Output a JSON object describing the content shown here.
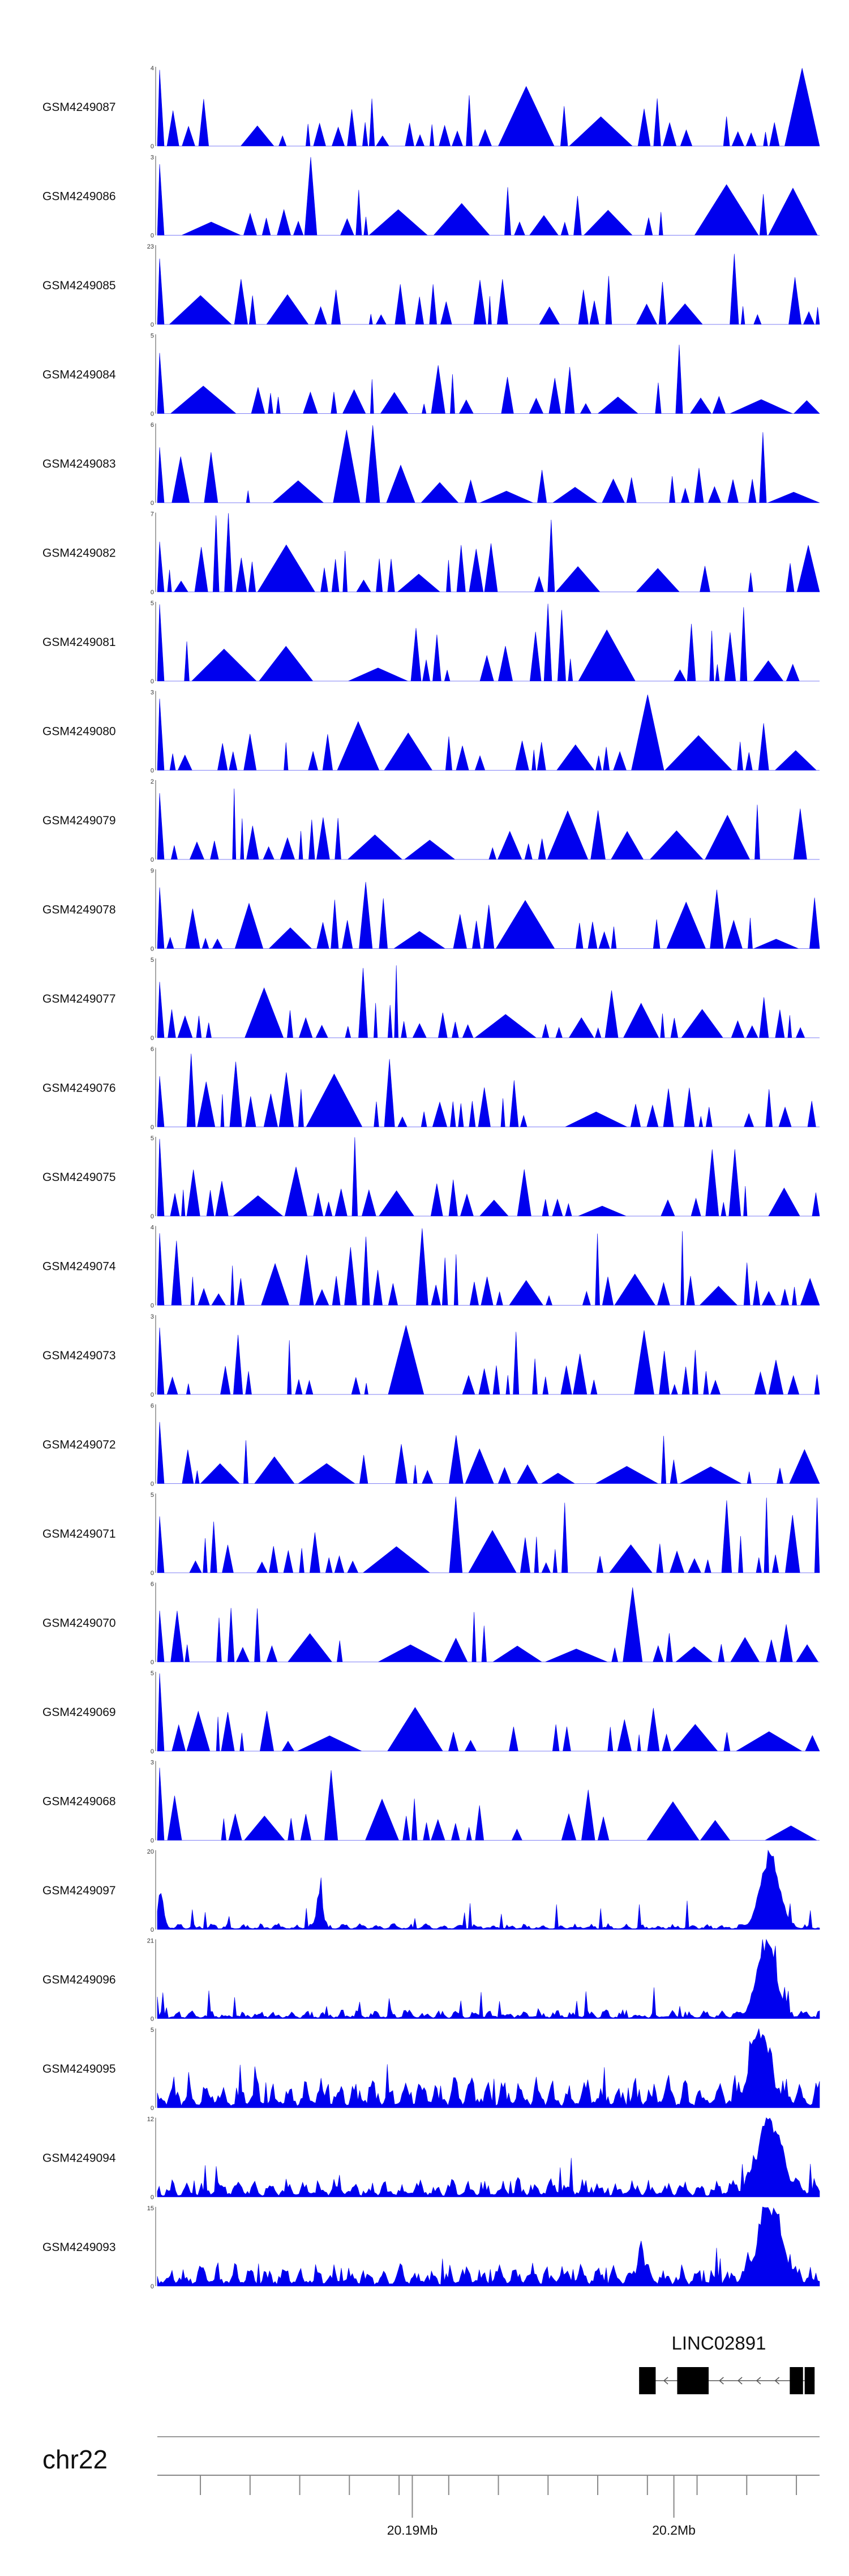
{
  "chart_data": {
    "type": "area",
    "color": "#0000ee",
    "axis_color": "#888888",
    "tracks": [
      {
        "label": "GSM4249087",
        "ymax": "4",
        "ymin": "0",
        "kind": "spike",
        "max": 4,
        "seed": 11,
        "peaks": []
      },
      {
        "label": "GSM4249086",
        "ymax": "3",
        "ymin": "0",
        "kind": "spike",
        "max": 3,
        "seed": 12,
        "peaks": []
      },
      {
        "label": "GSM4249085",
        "ymax": "23",
        "ymin": "0",
        "kind": "spike",
        "max": 23,
        "seed": 13,
        "peaks": []
      },
      {
        "label": "GSM4249084",
        "ymax": "5",
        "ymin": "0",
        "kind": "spike",
        "max": 5,
        "seed": 14,
        "peaks": []
      },
      {
        "label": "GSM4249083",
        "ymax": "6",
        "ymin": "0",
        "kind": "spike",
        "max": 6,
        "seed": 15,
        "peaks": []
      },
      {
        "label": "GSM4249082",
        "ymax": "7",
        "ymin": "0",
        "kind": "spike",
        "max": 7,
        "seed": 16,
        "peaks": []
      },
      {
        "label": "GSM4249081",
        "ymax": "5",
        "ymin": "0",
        "kind": "spike",
        "max": 5,
        "seed": 17,
        "peaks": []
      },
      {
        "label": "GSM4249080",
        "ymax": "3",
        "ymin": "0",
        "kind": "spike",
        "max": 3,
        "seed": 18,
        "peaks": []
      },
      {
        "label": "GSM4249079",
        "ymax": "2",
        "ymin": "0",
        "kind": "spike",
        "max": 2,
        "seed": 19,
        "peaks": []
      },
      {
        "label": "GSM4249078",
        "ymax": "9",
        "ymin": "0",
        "kind": "spike",
        "max": 9,
        "seed": 20,
        "peaks": []
      },
      {
        "label": "GSM4249077",
        "ymax": "5",
        "ymin": "0",
        "kind": "spike",
        "max": 5,
        "seed": 21,
        "peaks": []
      },
      {
        "label": "GSM4249076",
        "ymax": "6",
        "ymin": "0",
        "kind": "spike",
        "max": 6,
        "seed": 22,
        "peaks": []
      },
      {
        "label": "GSM4249075",
        "ymax": "5",
        "ymin": "0",
        "kind": "spike",
        "max": 5,
        "seed": 23,
        "peaks": []
      },
      {
        "label": "GSM4249074",
        "ymax": "4",
        "ymin": "0",
        "kind": "spike",
        "max": 4,
        "seed": 24,
        "peaks": []
      },
      {
        "label": "GSM4249073",
        "ymax": "3",
        "ymin": "0",
        "kind": "spike",
        "max": 3,
        "seed": 25,
        "peaks": []
      },
      {
        "label": "GSM4249072",
        "ymax": "6",
        "ymin": "0",
        "kind": "spike",
        "max": 6,
        "seed": 26,
        "peaks": []
      },
      {
        "label": "GSM4249071",
        "ymax": "5",
        "ymin": "0",
        "kind": "spike",
        "max": 5,
        "seed": 27,
        "peaks": []
      },
      {
        "label": "GSM4249070",
        "ymax": "6",
        "ymin": "0",
        "kind": "spike",
        "max": 6,
        "seed": 28,
        "peaks": []
      },
      {
        "label": "GSM4249069",
        "ymax": "5",
        "ymin": "0",
        "kind": "spike",
        "max": 5,
        "seed": 29,
        "peaks": []
      },
      {
        "label": "GSM4249068",
        "ymax": "3",
        "ymin": "0",
        "kind": "spike",
        "max": 3,
        "seed": 30,
        "peaks": []
      },
      {
        "label": "GSM4249097",
        "ymax": "20",
        "ymin": "0",
        "kind": "dense",
        "max": 20,
        "seed": 31,
        "base": 0.08,
        "peaks": [
          {
            "pos": 0.005,
            "h": 0.45,
            "w": 0.006
          },
          {
            "pos": 0.245,
            "h": 0.5,
            "w": 0.006
          },
          {
            "pos": 0.925,
            "h": 0.95,
            "w": 0.02
          }
        ]
      },
      {
        "label": "GSM4249096",
        "ymax": "21",
        "ymin": "0",
        "kind": "dense",
        "max": 21,
        "seed": 32,
        "base": 0.12,
        "peaks": [
          {
            "pos": 0.92,
            "h": 0.98,
            "w": 0.02
          }
        ]
      },
      {
        "label": "GSM4249095",
        "ymax": "5",
        "ymin": "0",
        "kind": "dense",
        "max": 5,
        "seed": 33,
        "base": 0.4,
        "peaks": [
          {
            "pos": 0.91,
            "h": 0.95,
            "w": 0.02
          }
        ]
      },
      {
        "label": "GSM4249094",
        "ymax": "12",
        "ymin": "0",
        "kind": "dense",
        "max": 12,
        "seed": 34,
        "base": 0.25,
        "peaks": [
          {
            "pos": 0.925,
            "h": 0.95,
            "w": 0.025
          }
        ]
      },
      {
        "label": "GSM4249093",
        "ymax": "15",
        "ymin": "0",
        "kind": "dense",
        "max": 15,
        "seed": 35,
        "base": 0.3,
        "peaks": [
          {
            "pos": 0.73,
            "h": 0.55,
            "w": 0.006
          },
          {
            "pos": 0.925,
            "h": 0.95,
            "w": 0.025
          }
        ]
      }
    ],
    "gene": {
      "name": "LINC02891",
      "strand": "-",
      "exons": [
        [
          0.7275,
          0.7525
        ],
        [
          0.785,
          0.8325
        ],
        [
          0.955,
          0.975
        ],
        [
          0.9775,
          0.9925
        ]
      ]
    },
    "chromosome": "chr22",
    "axis": {
      "ticks": [
        0.065,
        0.14,
        0.215,
        0.29,
        0.365,
        0.44,
        0.515,
        0.59,
        0.665,
        0.74,
        0.815,
        0.89,
        0.965
      ],
      "labeled_ticks": [
        {
          "pos": 0.385,
          "label": "20.19Mb"
        },
        {
          "pos": 0.78,
          "label": "20.2Mb"
        }
      ]
    }
  }
}
